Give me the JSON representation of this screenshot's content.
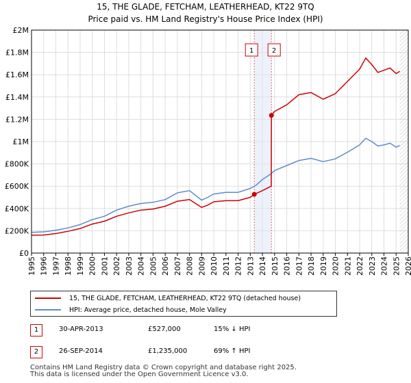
{
  "chart_data": {
    "type": "line",
    "title": "15, THE GLADE, FETCHAM, LEATHERHEAD, KT22 9TQ",
    "subtitle": "Price paid vs. HM Land Registry's House Price Index (HPI)",
    "xlabel": "",
    "ylabel": "",
    "xlim": [
      1995,
      2026
    ],
    "ylim": [
      0,
      2000000
    ],
    "x_ticks": [
      "1995",
      "1996",
      "1997",
      "1998",
      "1999",
      "2000",
      "2001",
      "2002",
      "2003",
      "2004",
      "2005",
      "2006",
      "2007",
      "2008",
      "2009",
      "2010",
      "2011",
      "2012",
      "2013",
      "2014",
      "2015",
      "2016",
      "2017",
      "2018",
      "2019",
      "2020",
      "2021",
      "2022",
      "2023",
      "2024",
      "2025",
      "2026"
    ],
    "y_ticks": [
      {
        "value": 0,
        "label": "£0"
      },
      {
        "value": 200000,
        "label": "£200K"
      },
      {
        "value": 400000,
        "label": "£400K"
      },
      {
        "value": 600000,
        "label": "£600K"
      },
      {
        "value": 800000,
        "label": "£800K"
      },
      {
        "value": 1000000,
        "label": "£1M"
      },
      {
        "value": 1200000,
        "label": "£1.2M"
      },
      {
        "value": 1400000,
        "label": "£1.4M"
      },
      {
        "value": 1600000,
        "label": "£1.6M"
      },
      {
        "value": 1800000,
        "label": "£1.8M"
      },
      {
        "value": 2000000,
        "label": "£2M"
      }
    ],
    "grid": true,
    "series": [
      {
        "name": "15, THE GLADE, FETCHAM, LEATHERHEAD, KT22 9TQ (detached house)",
        "color": "#cc0000",
        "points": [
          [
            1995,
            160000
          ],
          [
            1996,
            162000
          ],
          [
            1997,
            175000
          ],
          [
            1998,
            195000
          ],
          [
            1999,
            220000
          ],
          [
            2000,
            260000
          ],
          [
            2001,
            285000
          ],
          [
            2002,
            330000
          ],
          [
            2003,
            360000
          ],
          [
            2004,
            385000
          ],
          [
            2005,
            395000
          ],
          [
            2006,
            420000
          ],
          [
            2007,
            465000
          ],
          [
            2008,
            480000
          ],
          [
            2009,
            410000
          ],
          [
            2009.5,
            430000
          ],
          [
            2010,
            460000
          ],
          [
            2011,
            470000
          ],
          [
            2012,
            470000
          ],
          [
            2013,
            500000
          ],
          [
            2013.33,
            527000
          ],
          [
            2013.7,
            545000
          ],
          [
            2014,
            560000
          ],
          [
            2014.73,
            600000
          ],
          [
            2014.74,
            1235000
          ],
          [
            2015,
            1270000
          ],
          [
            2016,
            1330000
          ],
          [
            2017,
            1420000
          ],
          [
            2018,
            1440000
          ],
          [
            2019,
            1380000
          ],
          [
            2020,
            1430000
          ],
          [
            2021,
            1540000
          ],
          [
            2022,
            1650000
          ],
          [
            2022.5,
            1750000
          ],
          [
            2023,
            1690000
          ],
          [
            2023.5,
            1620000
          ],
          [
            2024,
            1640000
          ],
          [
            2024.5,
            1660000
          ],
          [
            2025,
            1610000
          ],
          [
            2025.3,
            1630000
          ]
        ]
      },
      {
        "name": "HPI: Average price, detached house, Mole Valley",
        "color": "#5b8ccc",
        "points": [
          [
            1995,
            185000
          ],
          [
            1996,
            190000
          ],
          [
            1997,
            205000
          ],
          [
            1998,
            225000
          ],
          [
            1999,
            255000
          ],
          [
            2000,
            300000
          ],
          [
            2001,
            330000
          ],
          [
            2002,
            385000
          ],
          [
            2003,
            420000
          ],
          [
            2004,
            445000
          ],
          [
            2005,
            455000
          ],
          [
            2006,
            480000
          ],
          [
            2007,
            540000
          ],
          [
            2008,
            560000
          ],
          [
            2009,
            475000
          ],
          [
            2009.5,
            500000
          ],
          [
            2010,
            530000
          ],
          [
            2011,
            545000
          ],
          [
            2012,
            545000
          ],
          [
            2013,
            580000
          ],
          [
            2013.5,
            610000
          ],
          [
            2014,
            660000
          ],
          [
            2014.7,
            710000
          ],
          [
            2015,
            740000
          ],
          [
            2016,
            785000
          ],
          [
            2017,
            830000
          ],
          [
            2018,
            850000
          ],
          [
            2019,
            820000
          ],
          [
            2020,
            845000
          ],
          [
            2021,
            905000
          ],
          [
            2022,
            970000
          ],
          [
            2022.5,
            1030000
          ],
          [
            2023,
            1000000
          ],
          [
            2023.5,
            960000
          ],
          [
            2024,
            970000
          ],
          [
            2024.5,
            985000
          ],
          [
            2025,
            950000
          ],
          [
            2025.3,
            965000
          ]
        ]
      }
    ],
    "transactions": [
      {
        "label": "1",
        "year": 2013.33,
        "price": 527000
      },
      {
        "label": "2",
        "year": 2014.74,
        "price": 1235000
      }
    ],
    "shaded_ranges": [
      [
        2013.33,
        2014.74
      ]
    ],
    "hatched_from": 2025.3
  },
  "legend": {
    "property_label": "15, THE GLADE, FETCHAM, LEATHERHEAD, KT22 9TQ (detached house)",
    "hpi_label": "HPI: Average price, detached house, Mole Valley"
  },
  "transactions_table": [
    {
      "num": "1",
      "date": "30-APR-2013",
      "price": "£527,000",
      "hpi": "15% ↓ HPI"
    },
    {
      "num": "2",
      "date": "26-SEP-2014",
      "price": "£1,235,000",
      "hpi": "69% ↑ HPI"
    }
  ],
  "footer": {
    "line1": "Contains HM Land Registry data © Crown copyright and database right 2025.",
    "line2": "This data is licensed under the Open Government Licence v3.0."
  }
}
